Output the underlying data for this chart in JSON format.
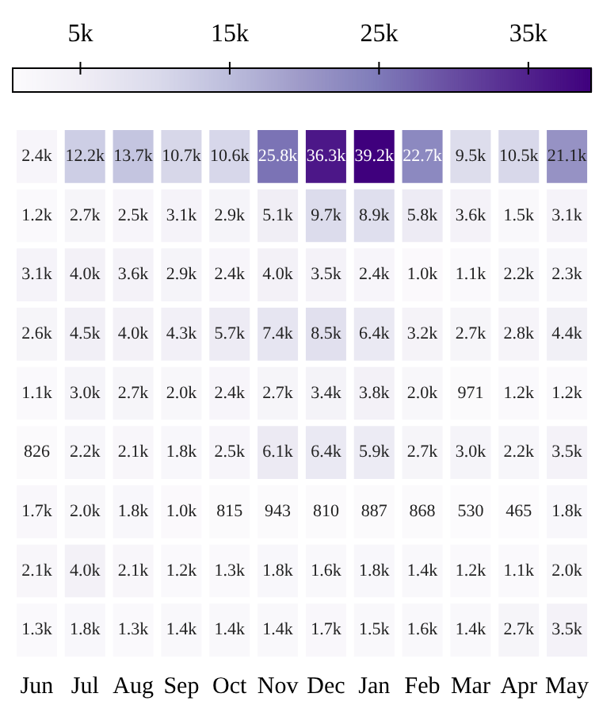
{
  "chart_data": {
    "type": "heatmap",
    "categories": [
      "Jun",
      "Jul",
      "Aug",
      "Sep",
      "Oct",
      "Nov",
      "Dec",
      "Jan",
      "Feb",
      "Mar",
      "Apr",
      "May"
    ],
    "y_categories": [
      null,
      null,
      null,
      null,
      null,
      null,
      null,
      null,
      null
    ],
    "cells": [
      [
        2400,
        12200,
        13700,
        10700,
        10600,
        25800,
        36300,
        39200,
        22700,
        9500,
        10500,
        21100
      ],
      [
        1200,
        2700,
        2500,
        3100,
        2900,
        5100,
        9700,
        8900,
        5800,
        3600,
        1500,
        3100
      ],
      [
        3100,
        4000,
        3600,
        2900,
        2400,
        4000,
        3500,
        2400,
        1000,
        1100,
        2200,
        2300
      ],
      [
        2600,
        4500,
        4000,
        4300,
        5700,
        7400,
        8500,
        6400,
        3200,
        2700,
        2800,
        4400
      ],
      [
        1100,
        3000,
        2700,
        2000,
        2400,
        2700,
        3400,
        3800,
        2000,
        971,
        1200,
        1200
      ],
      [
        826,
        2200,
        2100,
        1800,
        2500,
        6100,
        6400,
        5900,
        2700,
        3000,
        2200,
        3500
      ],
      [
        1700,
        2000,
        1800,
        1000,
        815,
        943,
        810,
        887,
        868,
        530,
        465,
        1800
      ],
      [
        2100,
        4000,
        2100,
        1200,
        1300,
        1800,
        1600,
        1800,
        1400,
        1200,
        1100,
        2000
      ],
      [
        1300,
        1800,
        1300,
        1400,
        1400,
        1400,
        1700,
        1500,
        1600,
        1400,
        2700,
        3500
      ]
    ],
    "cell_labels": [
      [
        "2.4k",
        "12.2k",
        "13.7k",
        "10.7k",
        "10.6k",
        "25.8k",
        "36.3k",
        "39.2k",
        "22.7k",
        "9.5k",
        "10.5k",
        "21.1k"
      ],
      [
        "1.2k",
        "2.7k",
        "2.5k",
        "3.1k",
        "2.9k",
        "5.1k",
        "9.7k",
        "8.9k",
        "5.8k",
        "3.6k",
        "1.5k",
        "3.1k"
      ],
      [
        "3.1k",
        "4.0k",
        "3.6k",
        "2.9k",
        "2.4k",
        "4.0k",
        "3.5k",
        "2.4k",
        "1.0k",
        "1.1k",
        "2.2k",
        "2.3k"
      ],
      [
        "2.6k",
        "4.5k",
        "4.0k",
        "4.3k",
        "5.7k",
        "7.4k",
        "8.5k",
        "6.4k",
        "3.2k",
        "2.7k",
        "2.8k",
        "4.4k"
      ],
      [
        "1.1k",
        "3.0k",
        "2.7k",
        "2.0k",
        "2.4k",
        "2.7k",
        "3.4k",
        "3.8k",
        "2.0k",
        "971",
        "1.2k",
        "1.2k"
      ],
      [
        "826",
        "2.2k",
        "2.1k",
        "1.8k",
        "2.5k",
        "6.1k",
        "6.4k",
        "5.9k",
        "2.7k",
        "3.0k",
        "2.2k",
        "3.5k"
      ],
      [
        "1.7k",
        "2.0k",
        "1.8k",
        "1.0k",
        "815",
        "943",
        "810",
        "887",
        "868",
        "530",
        "465",
        "1.8k"
      ],
      [
        "2.1k",
        "4.0k",
        "2.1k",
        "1.2k",
        "1.3k",
        "1.8k",
        "1.6k",
        "1.8k",
        "1.4k",
        "1.2k",
        "1.1k",
        "2.0k"
      ],
      [
        "1.3k",
        "1.8k",
        "1.3k",
        "1.4k",
        "1.4k",
        "1.4k",
        "1.7k",
        "1.5k",
        "1.6k",
        "1.4k",
        "2.7k",
        "3.5k"
      ]
    ],
    "clim": [
      465,
      39200
    ],
    "cticks": [
      {
        "value": 5000,
        "label": "5k"
      },
      {
        "value": 15000,
        "label": "15k"
      },
      {
        "value": 25000,
        "label": "25k"
      },
      {
        "value": 35000,
        "label": "35k"
      }
    ]
  }
}
